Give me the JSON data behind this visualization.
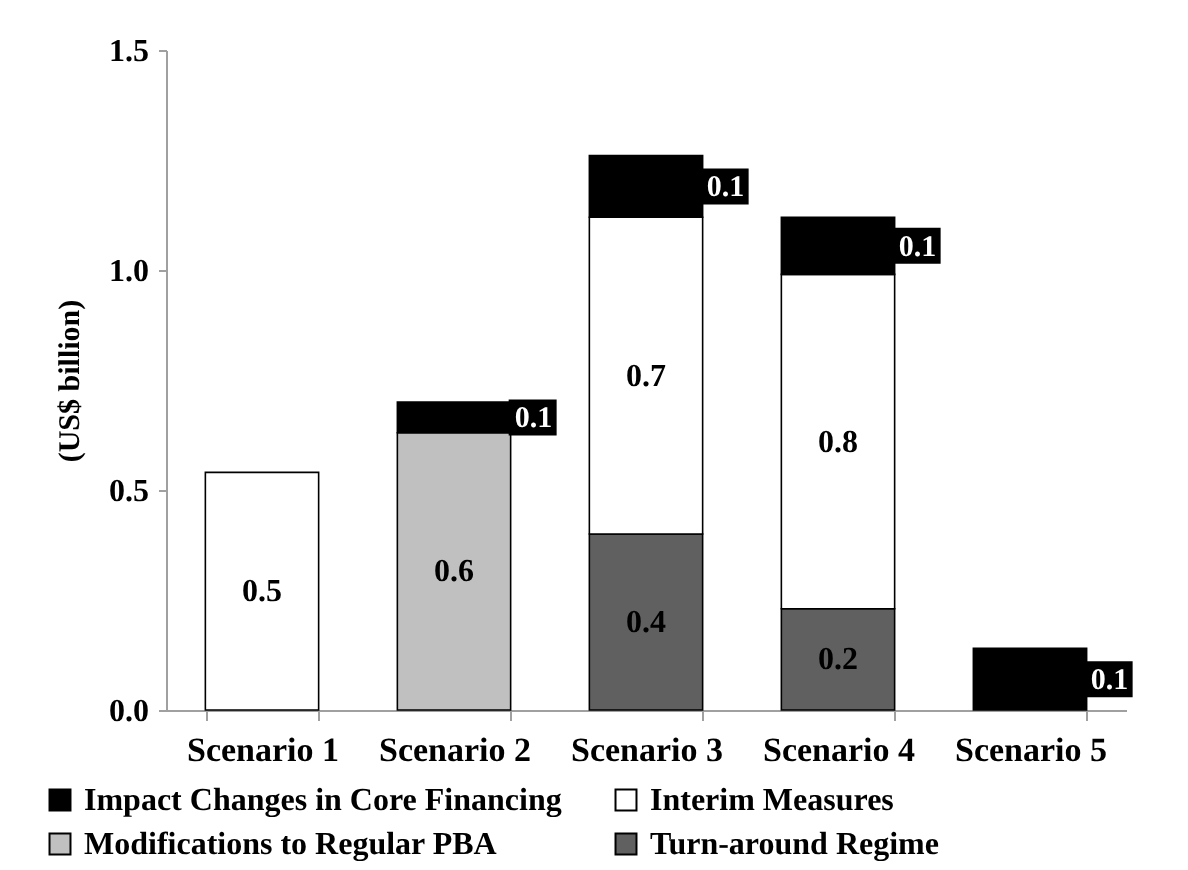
{
  "chart_data": {
    "type": "bar",
    "stacked": true,
    "ylabel": "(US$ billion)",
    "categories": [
      "Scenario 1",
      "Scenario 2",
      "Scenario 3",
      "Scenario 4",
      "Scenario 5"
    ],
    "series": [
      {
        "name": "Turn-around Regime",
        "color": "#606060",
        "values": [
          null,
          null,
          0.4,
          0.23,
          null
        ],
        "value_labels": [
          null,
          null,
          "0.4",
          "0.2",
          null
        ]
      },
      {
        "name": "Modifications to Regular PBA",
        "color": "#c0c0c0",
        "values": [
          null,
          0.63,
          null,
          null,
          null
        ],
        "value_labels": [
          null,
          "0.6",
          null,
          null,
          null
        ]
      },
      {
        "name": "Interim Measures",
        "color": "#ffffff",
        "values": [
          0.54,
          null,
          0.72,
          0.76,
          null
        ],
        "value_labels": [
          "0.5",
          null,
          "0.7",
          "0.8",
          null
        ]
      },
      {
        "name": "Impact Changes in Core Financing",
        "color": "#000000",
        "values": [
          null,
          0.07,
          0.14,
          0.13,
          0.14
        ],
        "value_labels": [
          null,
          "0.1",
          "0.1",
          "0.1",
          "0.1"
        ]
      }
    ],
    "ylim": [
      0,
      1.5
    ],
    "yticks": [
      {
        "value": 0,
        "label": "0.0"
      },
      0.5,
      {
        "value": 1,
        "label": "1.0"
      },
      1.5
    ],
    "grid": false,
    "legend": "bottom"
  }
}
